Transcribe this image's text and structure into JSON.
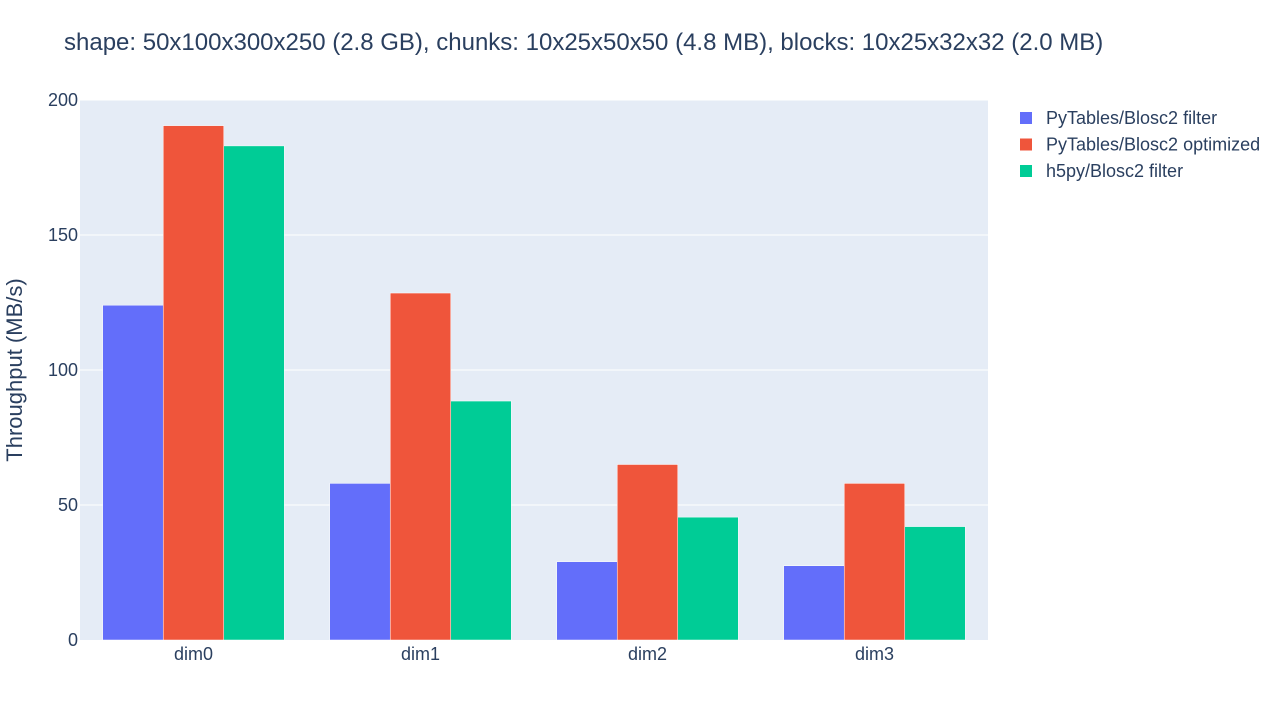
{
  "chart_data": {
    "type": "bar",
    "title": "shape: 50x100x300x250 (2.8 GB), chunks: 10x25x50x50 (4.8 MB), blocks: 10x25x32x32 (2.0 MB)",
    "xlabel": "",
    "ylabel": "Throughput (MB/s)",
    "categories": [
      "dim0",
      "dim1",
      "dim2",
      "dim3"
    ],
    "ylim": [
      0,
      200
    ],
    "yticks": [
      0,
      50,
      100,
      150,
      200
    ],
    "grid": true,
    "legend_position": "top-right",
    "series": [
      {
        "name": "PyTables/Blosc2 filter",
        "color": "#636efa",
        "values": [
          124,
          58,
          29,
          27.5
        ]
      },
      {
        "name": "PyTables/Blosc2 optimized",
        "color": "#ef553b",
        "values": [
          190.5,
          128.5,
          65,
          58
        ]
      },
      {
        "name": "h5py/Blosc2 filter",
        "color": "#00cc96",
        "values": [
          183,
          88.5,
          45.5,
          42
        ]
      }
    ],
    "plot_background": "#e5ecf6",
    "gridline_color": "#ffffff"
  }
}
